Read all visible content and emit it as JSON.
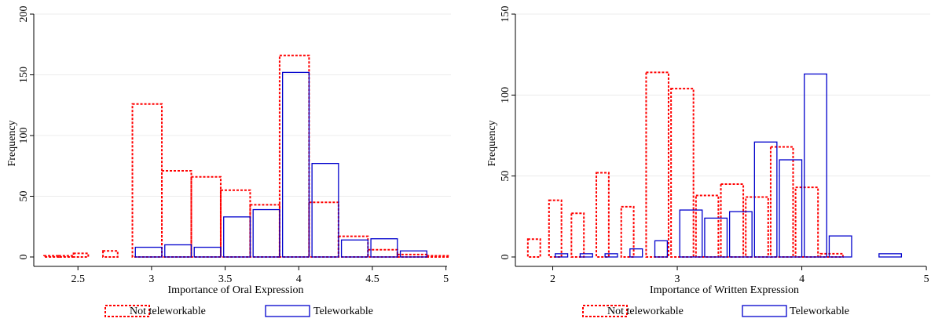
{
  "chart_data": [
    {
      "type": "bar",
      "xlabel": "Importance of Oral Expression",
      "ylabel": "Frequency",
      "xlim": [
        2.2,
        5.05
      ],
      "ylim": [
        0,
        200
      ],
      "xticks": [
        2.5,
        3,
        3.5,
        4,
        4.5,
        5
      ],
      "xtick_labels": [
        "2.5",
        "3",
        "3.5",
        "4",
        "4.5",
        "5"
      ],
      "yticks": [
        0,
        50,
        100,
        150,
        200
      ],
      "ytick_labels": [
        "0",
        "50",
        "100",
        "150",
        "200"
      ],
      "grid": true,
      "legend_position": "bottom",
      "series": [
        {
          "name": "Not teleworkable",
          "color": "#ff0000",
          "line_style": "dashed",
          "bins": [
            {
              "x0": 2.27,
              "x1": 2.37,
              "value": 1
            },
            {
              "x0": 2.37,
              "x1": 2.47,
              "value": 1
            },
            {
              "x0": 2.47,
              "x1": 2.57,
              "value": 3
            },
            {
              "x0": 2.67,
              "x1": 2.77,
              "value": 5
            },
            {
              "x0": 2.87,
              "x1": 3.07,
              "value": 126
            },
            {
              "x0": 3.07,
              "x1": 3.27,
              "value": 71
            },
            {
              "x0": 3.27,
              "x1": 3.47,
              "value": 66
            },
            {
              "x0": 3.47,
              "x1": 3.67,
              "value": 55
            },
            {
              "x0": 3.67,
              "x1": 3.87,
              "value": 43
            },
            {
              "x0": 3.87,
              "x1": 4.07,
              "value": 166
            },
            {
              "x0": 4.07,
              "x1": 4.27,
              "value": 45
            },
            {
              "x0": 4.27,
              "x1": 4.47,
              "value": 17
            },
            {
              "x0": 4.47,
              "x1": 4.67,
              "value": 6
            },
            {
              "x0": 4.67,
              "x1": 4.87,
              "value": 2
            },
            {
              "x0": 4.87,
              "x1": 5.02,
              "value": 1
            }
          ]
        },
        {
          "name": "Teleworkable",
          "color": "#0000cc",
          "line_style": "solid",
          "bins": [
            {
              "x0": 2.89,
              "x1": 3.07,
              "value": 8
            },
            {
              "x0": 3.09,
              "x1": 3.27,
              "value": 10
            },
            {
              "x0": 3.29,
              "x1": 3.47,
              "value": 8
            },
            {
              "x0": 3.49,
              "x1": 3.67,
              "value": 33
            },
            {
              "x0": 3.69,
              "x1": 3.87,
              "value": 39
            },
            {
              "x0": 3.89,
              "x1": 4.07,
              "value": 152
            },
            {
              "x0": 4.09,
              "x1": 4.27,
              "value": 77
            },
            {
              "x0": 4.29,
              "x1": 4.47,
              "value": 14
            },
            {
              "x0": 4.49,
              "x1": 4.67,
              "value": 15
            },
            {
              "x0": 4.69,
              "x1": 4.87,
              "value": 5
            }
          ]
        }
      ]
    },
    {
      "type": "bar",
      "xlabel": "Importance of Written Expression",
      "ylabel": "Frequency",
      "xlim": [
        1.7,
        5.05
      ],
      "ylim": [
        0,
        150
      ],
      "xticks": [
        2,
        3,
        4,
        5
      ],
      "xtick_labels": [
        "2",
        "3",
        "4",
        "5"
      ],
      "yticks": [
        0,
        50,
        100,
        150
      ],
      "ytick_labels": [
        "0",
        "50",
        "100",
        "150"
      ],
      "grid": true,
      "legend_position": "bottom",
      "series": [
        {
          "name": "Not teleworkable",
          "color": "#ff0000",
          "line_style": "dashed",
          "bins": [
            {
              "x0": 1.8,
              "x1": 1.9,
              "value": 11
            },
            {
              "x0": 1.97,
              "x1": 2.07,
              "value": 35
            },
            {
              "x0": 2.15,
              "x1": 2.25,
              "value": 27
            },
            {
              "x0": 2.35,
              "x1": 2.45,
              "value": 52
            },
            {
              "x0": 2.55,
              "x1": 2.65,
              "value": 31
            },
            {
              "x0": 2.75,
              "x1": 2.93,
              "value": 114
            },
            {
              "x0": 2.95,
              "x1": 3.13,
              "value": 104
            },
            {
              "x0": 3.15,
              "x1": 3.33,
              "value": 38
            },
            {
              "x0": 3.35,
              "x1": 3.53,
              "value": 45
            },
            {
              "x0": 3.55,
              "x1": 3.73,
              "value": 37
            },
            {
              "x0": 3.75,
              "x1": 3.93,
              "value": 68
            },
            {
              "x0": 3.95,
              "x1": 4.13,
              "value": 43
            },
            {
              "x0": 4.15,
              "x1": 4.33,
              "value": 2
            }
          ]
        },
        {
          "name": "Teleworkable",
          "color": "#0000cc",
          "line_style": "solid",
          "bins": [
            {
              "x0": 2.02,
              "x1": 2.12,
              "value": 2
            },
            {
              "x0": 2.22,
              "x1": 2.32,
              "value": 2
            },
            {
              "x0": 2.42,
              "x1": 2.52,
              "value": 2
            },
            {
              "x0": 2.62,
              "x1": 2.72,
              "value": 5
            },
            {
              "x0": 2.82,
              "x1": 2.92,
              "value": 10
            },
            {
              "x0": 3.02,
              "x1": 3.2,
              "value": 29
            },
            {
              "x0": 3.22,
              "x1": 3.4,
              "value": 24
            },
            {
              "x0": 3.42,
              "x1": 3.6,
              "value": 28
            },
            {
              "x0": 3.62,
              "x1": 3.8,
              "value": 71
            },
            {
              "x0": 3.82,
              "x1": 4.0,
              "value": 60
            },
            {
              "x0": 4.02,
              "x1": 4.2,
              "value": 113
            },
            {
              "x0": 4.22,
              "x1": 4.4,
              "value": 13
            },
            {
              "x0": 4.62,
              "x1": 4.8,
              "value": 2
            }
          ]
        }
      ]
    }
  ]
}
